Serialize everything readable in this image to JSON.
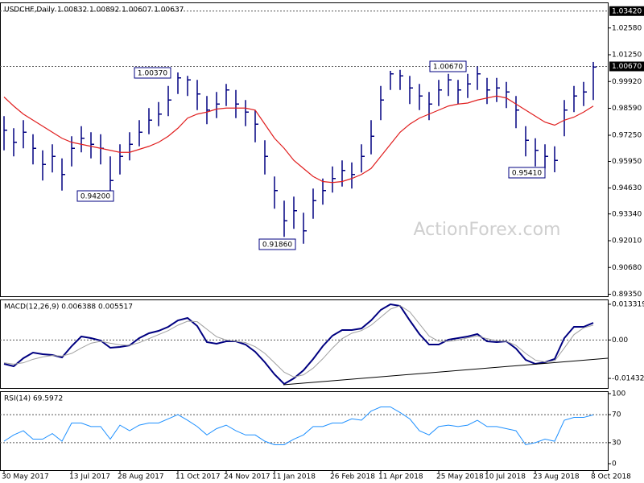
{
  "chart_data": [
    {
      "type": "hlc",
      "title": "USDCHF,Daily  1.00832 1.00892 1.00607 1.00637",
      "watermark": "ActionForex.com",
      "categories": [
        "30 May 2017",
        null,
        null,
        null,
        null,
        null,
        null,
        "13 Jul 2017",
        null,
        null,
        null,
        null,
        "28 Aug 2017",
        null,
        null,
        null,
        null,
        null,
        "11 Oct 2017",
        null,
        null,
        null,
        null,
        "24 Nov 2017",
        null,
        null,
        null,
        null,
        "11 Jan 2018",
        null,
        null,
        null,
        null,
        null,
        "26 Feb 2018",
        null,
        null,
        null,
        null,
        "11 Apr 2018",
        null,
        null,
        null,
        null,
        null,
        "25 May 2018",
        null,
        null,
        null,
        null,
        "10 Jul 2018",
        null,
        null,
        null,
        null,
        "23 Aug 2018",
        null,
        null,
        null,
        null,
        null,
        "8 Oct 2018"
      ],
      "high": [
        0.982,
        0.976,
        0.98,
        0.973,
        0.965,
        0.968,
        0.961,
        0.972,
        0.977,
        0.974,
        0.973,
        0.962,
        0.968,
        0.974,
        0.98,
        0.986,
        0.989,
        0.997,
        1.0037,
        1.002,
        1.0,
        0.992,
        0.994,
        0.998,
        0.995,
        0.99,
        0.985,
        0.97,
        0.952,
        0.94,
        0.942,
        0.934,
        0.946,
        0.951,
        0.957,
        0.96,
        0.959,
        0.968,
        0.98,
        0.997,
        1.0045,
        1.005,
        1.002,
        0.998,
        0.994,
        1.0,
        1.003,
        1.0,
        1.003,
        1.0067,
        1.001,
        1.001,
        0.999,
        0.992,
        0.977,
        0.971,
        0.968,
        0.967,
        0.99,
        0.997,
        0.999,
        1.00892
      ],
      "low": [
        0.965,
        0.962,
        0.966,
        0.958,
        0.95,
        0.954,
        0.945,
        0.957,
        0.964,
        0.961,
        0.958,
        0.942,
        0.953,
        0.96,
        0.967,
        0.973,
        0.977,
        0.982,
        0.993,
        0.992,
        0.985,
        0.978,
        0.981,
        0.987,
        0.981,
        0.977,
        0.969,
        0.953,
        0.936,
        0.922,
        0.926,
        0.9186,
        0.931,
        0.938,
        0.944,
        0.947,
        0.946,
        0.954,
        0.963,
        0.98,
        0.995,
        0.995,
        0.988,
        0.985,
        0.98,
        0.987,
        0.992,
        0.988,
        0.991,
        0.995,
        0.988,
        0.989,
        0.986,
        0.976,
        0.962,
        0.957,
        0.956,
        0.9541,
        0.972,
        0.984,
        0.987,
        0.99
      ],
      "close": [
        0.975,
        0.969,
        0.974,
        0.966,
        0.958,
        0.962,
        0.953,
        0.966,
        0.971,
        0.968,
        0.966,
        0.95,
        0.962,
        0.968,
        0.974,
        0.98,
        0.983,
        0.99,
        1.001,
        1.0,
        0.993,
        0.985,
        0.988,
        0.995,
        0.988,
        0.984,
        0.978,
        0.962,
        0.945,
        0.93,
        0.935,
        0.925,
        0.94,
        0.945,
        0.951,
        0.955,
        0.953,
        0.962,
        0.972,
        0.99,
        1.003,
        1.002,
        0.996,
        0.992,
        0.988,
        0.995,
        1.0,
        0.995,
        0.998,
        1.003,
        0.995,
        0.996,
        0.994,
        0.985,
        0.97,
        0.965,
        0.962,
        0.96,
        0.985,
        0.992,
        0.994,
        1.00637
      ],
      "color": "#000080",
      "lines": [
        {
          "color": "#e01e1e",
          "values": [
            0.9915,
            0.987,
            0.983,
            0.98,
            0.977,
            0.974,
            0.971,
            0.969,
            0.968,
            0.967,
            0.966,
            0.965,
            0.964,
            0.964,
            0.9655,
            0.967,
            0.969,
            0.972,
            0.976,
            0.981,
            0.983,
            0.984,
            0.9855,
            0.986,
            0.986,
            0.986,
            0.985,
            0.978,
            0.971,
            0.966,
            0.96,
            0.956,
            0.952,
            0.9495,
            0.949,
            0.9495,
            0.951,
            0.953,
            0.956,
            0.962,
            0.968,
            0.974,
            0.978,
            0.981,
            0.983,
            0.985,
            0.987,
            0.988,
            0.9885,
            0.99,
            0.991,
            0.992,
            0.991,
            0.988,
            0.985,
            0.982,
            0.979,
            0.9775,
            0.98,
            0.9815,
            0.984,
            0.987
          ]
        }
      ],
      "annotations": [
        "1.00370",
        "0.94200",
        "0.91860",
        "1.00670",
        "0.95410"
      ],
      "ylim": [
        0.8925,
        1.0385
      ],
      "yticks": [
        {
          "value": 1.0258,
          "label": "1.02580"
        },
        {
          "value": 1.0125,
          "label": "1.01250"
        },
        {
          "value": 0.9992,
          "label": "0.99920"
        },
        {
          "value": 0.9859,
          "label": "0.98590"
        },
        {
          "value": 0.9725,
          "label": "0.97250"
        },
        {
          "value": 0.9595,
          "label": "0.95950"
        },
        {
          "value": 0.9463,
          "label": "0.94630"
        },
        {
          "value": 0.9334,
          "label": "0.93340"
        },
        {
          "value": 0.9201,
          "label": "0.92010"
        },
        {
          "value": 0.9068,
          "label": "0.90680"
        },
        {
          "value": 0.8935,
          "label": "0.89350"
        }
      ],
      "levels": [
        {
          "value": 1.0342,
          "label": "1.03420"
        },
        {
          "value": 1.0067,
          "label": "1.00670"
        }
      ]
    },
    {
      "type": "line",
      "title": "MACD(12,26,9) 0.006388 0.005517",
      "series": [
        {
          "color": "#000080",
          "width": 2,
          "values": [
            -0.0089,
            -0.0098,
            -0.0068,
            -0.0047,
            -0.0053,
            -0.0056,
            -0.0065,
            -0.0023,
            0.0013,
            0.0007,
            -0.0002,
            -0.0029,
            -0.0026,
            -0.002,
            0.0007,
            0.0025,
            0.0034,
            0.0049,
            0.0073,
            0.0082,
            0.0052,
            -0.0008,
            -0.0014,
            -0.0005,
            -0.0005,
            -0.0017,
            -0.0044,
            -0.0083,
            -0.0128,
            -0.0164,
            -0.0143,
            -0.0113,
            -0.0071,
            -0.0023,
            0.0016,
            0.0037,
            0.0037,
            0.0043,
            0.0073,
            0.0112,
            0.0133,
            0.0127,
            0.0073,
            0.0022,
            -0.0017,
            -0.0017,
            0.0001,
            0.0007,
            0.0013,
            0.0022,
            -0.0005,
            -0.0008,
            -0.0005,
            -0.0032,
            -0.0074,
            -0.0089,
            -0.0083,
            -0.0071,
            0.0007,
            0.0049,
            0.0049,
            0.006388
          ]
        },
        {
          "color": "#a0a0a0",
          "width": 1,
          "values": [
            -0.0085,
            -0.009,
            -0.0085,
            -0.0072,
            -0.0063,
            -0.0058,
            -0.006,
            -0.005,
            -0.003,
            -0.0012,
            -0.0005,
            -0.0012,
            -0.0018,
            -0.002,
            -0.001,
            0.0005,
            0.002,
            0.0035,
            0.0055,
            0.007,
            0.0068,
            0.004,
            0.0012,
            0.0,
            -0.0005,
            -0.001,
            -0.0025,
            -0.005,
            -0.0085,
            -0.012,
            -0.0138,
            -0.013,
            -0.0105,
            -0.007,
            -0.003,
            0.0005,
            0.0025,
            0.0035,
            0.0055,
            0.0085,
            0.0115,
            0.0128,
            0.0105,
            0.006,
            0.0015,
            -0.0005,
            -0.0005,
            0.0,
            0.0008,
            0.0015,
            0.0005,
            -0.0003,
            -0.0005,
            -0.002,
            -0.005,
            -0.0075,
            -0.0082,
            -0.0078,
            -0.003,
            0.002,
            0.0045,
            0.005517
          ]
        }
      ],
      "ylim": [
        -0.0179,
        0.0151
      ],
      "yticks": [
        0.013319,
        {
          "value": 0,
          "label": "0.00"
        },
        -0.014323
      ],
      "levels": [
        0
      ]
    },
    {
      "type": "line",
      "title": "RSI(14) 69.5972",
      "series": [
        {
          "color": "#1e90ff",
          "width": 1,
          "values": [
            32,
            41,
            47,
            35,
            35,
            43,
            32,
            58,
            58,
            53,
            53,
            35,
            55,
            47,
            55,
            58,
            58,
            64,
            70,
            62,
            53,
            41,
            50,
            55,
            47,
            41,
            41,
            32,
            27,
            27,
            35,
            41,
            53,
            53,
            58,
            58,
            64,
            62,
            75,
            81,
            81,
            73,
            64,
            47,
            41,
            53,
            55,
            53,
            55,
            62,
            53,
            53,
            50,
            47,
            27,
            30,
            35,
            32,
            62,
            66,
            66,
            69.5972
          ]
        }
      ],
      "ylim": [
        -9.2,
        103.4
      ],
      "yticks": [
        100,
        70,
        30,
        0
      ],
      "levels": [
        70,
        30
      ]
    }
  ]
}
